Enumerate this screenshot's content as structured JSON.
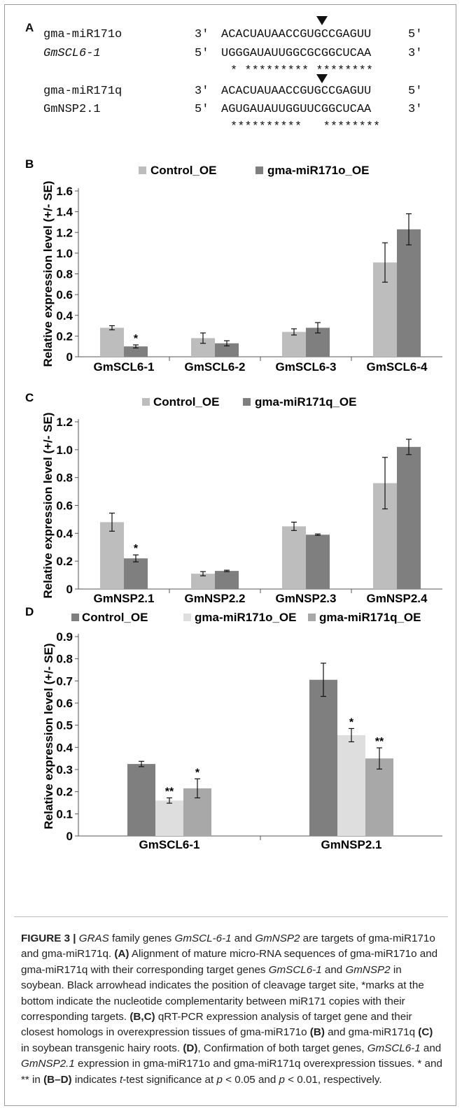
{
  "panelA": {
    "label": "A",
    "pairs": [
      {
        "mirna": "gma-miR171o",
        "mirna_p1": "3′",
        "mirna_seq": "ACACUAUAACCGUGCCGAGUU",
        "mirna_p2": "5′",
        "target": "GmSCL6-1",
        "target_p1": "5′",
        "target_seq": "UGGGAUAUUGGCGCGGCUCAA",
        "target_p2": "3′",
        "stars": "* ********* ********"
      },
      {
        "mirna": "gma-miR171q",
        "mirna_p1": "3′",
        "mirna_seq": "ACACUAUAACCGUGCCGAGUU",
        "mirna_p2": "5′",
        "target": "GmNSP2.1",
        "target_p1": "5′",
        "target_seq": "AGUGAUAUUGGUUCGGCUCAA",
        "target_p2": "3′",
        "stars": "**********   ********"
      }
    ]
  },
  "chart_data": [
    {
      "panel": "B",
      "type": "bar",
      "categories": [
        "GmSCL6-1",
        "GmSCL6-2",
        "GmSCL6-3",
        "GmSCL6-4"
      ],
      "series": [
        {
          "name": "Control_OE",
          "color": "#bdbdbd",
          "values": [
            0.28,
            0.18,
            0.24,
            0.91
          ],
          "errors": [
            0.02,
            0.05,
            0.03,
            0.19
          ],
          "sig": [
            "",
            "",
            "",
            ""
          ]
        },
        {
          "name": "gma-miR171o_OE",
          "color": "#7f7f7f",
          "values": [
            0.1,
            0.13,
            0.28,
            1.23
          ],
          "errors": [
            0.015,
            0.025,
            0.05,
            0.15
          ],
          "sig": [
            "*",
            "",
            "",
            ""
          ]
        }
      ],
      "ylabel": "Relative expression level (+/- SE)",
      "ylim": [
        0,
        1.6
      ],
      "yticks": [
        "0",
        "0.2",
        "0.4",
        "0.6",
        "0.8",
        "1.0",
        "1.2",
        "1.4",
        "1.6"
      ]
    },
    {
      "panel": "C",
      "type": "bar",
      "categories": [
        "GmNSP2.1",
        "GmNSP2.2",
        "GmNSP2.3",
        "GmNSP2.4"
      ],
      "series": [
        {
          "name": "Control_OE",
          "color": "#bdbdbd",
          "values": [
            0.48,
            0.11,
            0.45,
            0.76
          ],
          "errors": [
            0.065,
            0.015,
            0.03,
            0.185
          ],
          "sig": [
            "",
            "",
            "",
            ""
          ]
        },
        {
          "name": "gma-miR171q_OE",
          "color": "#7f7f7f",
          "values": [
            0.22,
            0.13,
            0.39,
            1.02
          ],
          "errors": [
            0.025,
            0.005,
            0.005,
            0.055
          ],
          "sig": [
            "*",
            "",
            "",
            ""
          ]
        }
      ],
      "ylabel": "Relative expression level (+/- SE)",
      "ylim": [
        0,
        1.2
      ],
      "yticks": [
        "0",
        "0.2",
        "0.4",
        "0.6",
        "0.8",
        "1.0",
        "1.2"
      ]
    },
    {
      "panel": "D",
      "type": "bar",
      "categories": [
        "GmSCL6-1",
        "GmNSP2.1"
      ],
      "series": [
        {
          "name": "Control_OE",
          "color": "#7f7f7f",
          "values": [
            0.325,
            0.705
          ],
          "errors": [
            0.012,
            0.075
          ],
          "sig": [
            "",
            ""
          ]
        },
        {
          "name": "gma-miR171o_OE",
          "color": "#dedede",
          "values": [
            0.16,
            0.455
          ],
          "errors": [
            0.012,
            0.03
          ],
          "sig": [
            "**",
            "*"
          ]
        },
        {
          "name": "gma-miR171q_OE",
          "color": "#a8a8a8",
          "values": [
            0.215,
            0.35
          ],
          "errors": [
            0.043,
            0.048
          ],
          "sig": [
            "*",
            "**"
          ]
        }
      ],
      "ylabel": "Relative expression level (+/- SE)",
      "ylim": [
        0,
        0.9
      ],
      "yticks": [
        "0",
        "0.1",
        "0.2",
        "0.3",
        "0.4",
        "0.5",
        "0.6",
        "0.7",
        "0.8",
        "0.9"
      ]
    }
  ],
  "caption": {
    "figure_label": "FIGURE 3 |",
    "t1": "GRAS",
    "t2": " family genes ",
    "t3": "GmSCL-6-1",
    "t4": " and ",
    "t5": "GmNSP2",
    "t6": " are targets of gma-miR171o and gma-miR171q. ",
    "t7": "(A)",
    "t8": " Alignment of mature micro-RNA sequences of gma-miR171o and gma-miR171q with their corresponding target genes ",
    "t9": "GmSCL6-1",
    "t10": " and ",
    "t11": "GmNSP2",
    "t12": " in soybean. Black arrowhead indicates the position of cleavage target site, *marks at the bottom indicate the nucleotide complementarity between miR171 copies with their corresponding targets. ",
    "t13": "(B,C)",
    "t14": " qRT-PCR expression analysis of target gene and their closest homologs in overexpression tissues of gma-miR171o ",
    "t15": "(B)",
    "t16": " and gma-miR171q ",
    "t17": "(C)",
    "t18": " in soybean transgenic hairy roots. ",
    "t19": "(D)",
    "t20": ", Confirmation of both target genes, ",
    "t21": "GmSCL6-1",
    "t22": " and ",
    "t23": "GmNSP2.1",
    "t24": " expression in gma-miR171o and gma-miR171q overexpression tissues. * and ** in ",
    "t25": "(B–D)",
    "t26": " indicates ",
    "t27": "t",
    "t28": "-test significance at ",
    "t29": "p",
    "t30": " < 0.05 and ",
    "t31": "p",
    "t32": " < 0.01, respectively."
  }
}
